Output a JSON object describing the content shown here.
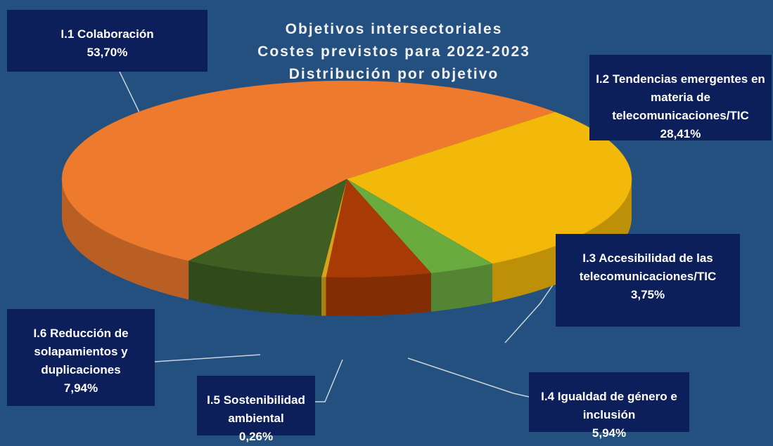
{
  "chart_data": {
    "type": "pie3d",
    "title": [
      "Objetivos intersectoriales",
      "Costes previstos para 2022-2023",
      "Distribución por objetivo"
    ],
    "categories": [
      "I.1 Colaboración",
      "I.2 Tendencias emergentes en materia de telecomunicaciones/TIC",
      "I.3 Accesibilidad de las telecomunicaciones/TIC",
      "I.4 Igualdad de género e inclusión",
      "I.5 Sostenibilidad ambiental",
      "I.6 Reducción de solapamientos y duplicaciones"
    ],
    "values": [
      53.7,
      28.41,
      3.75,
      5.94,
      0.26,
      7.94
    ],
    "value_labels": [
      "53,70%",
      "28,41%",
      "3,75%",
      "5,94%",
      "0,26%",
      "7,94%"
    ],
    "colors": [
      "#ee7a2e",
      "#f2b90a",
      "#6aab40",
      "#a83a06",
      "#d9a21a",
      "#3f5f22"
    ]
  }
}
